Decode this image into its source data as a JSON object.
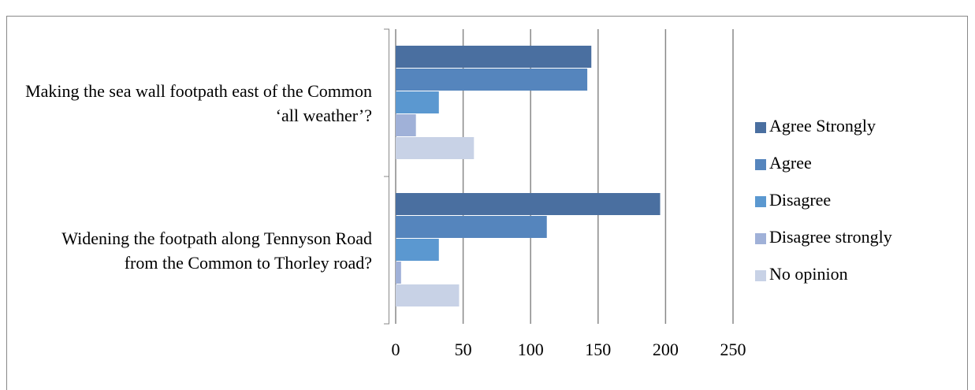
{
  "chart_data": {
    "type": "bar",
    "orientation": "horizontal",
    "categories": [
      "Making the sea wall footpath east of the Common ‘all weather’?",
      "Widening the footpath along Tennyson Road from the Common to Thorley road?"
    ],
    "series": [
      {
        "name": "Agree Strongly",
        "color": "#4a6fa0",
        "values": [
          145,
          196
        ]
      },
      {
        "name": "Agree",
        "color": "#5585bd",
        "values": [
          142,
          112
        ]
      },
      {
        "name": "Disagree",
        "color": "#5b98d0",
        "values": [
          32,
          32
        ]
      },
      {
        "name": "Disagree strongly",
        "color": "#a0b1d8",
        "values": [
          15,
          4
        ]
      },
      {
        "name": "No opinion",
        "color": "#c8d2e6",
        "values": [
          58,
          47
        ]
      }
    ],
    "xlim": [
      0,
      250
    ],
    "xticks": [
      0,
      50,
      100,
      150,
      200,
      250
    ],
    "grid": true,
    "legend": "right"
  }
}
